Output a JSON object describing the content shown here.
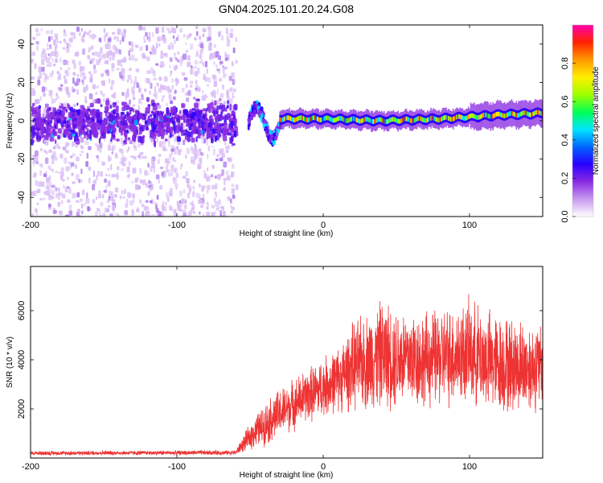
{
  "title": "GN04.2025.101.20.24.G08",
  "chart_data": [
    {
      "type": "heatmap",
      "name": "spectrogram",
      "xlabel": "Height of straight line (km)",
      "ylabel": "Frequency (Hz)",
      "xlim": [
        -200,
        150
      ],
      "ylim": [
        -50,
        50
      ],
      "xticks": [
        -200,
        -100,
        0,
        100
      ],
      "yticks": [
        -40,
        -20,
        0,
        20,
        40
      ],
      "colorbar": {
        "label": "Normalized spectral amplitude",
        "range": [
          0,
          1
        ],
        "ticks": [
          "0.0",
          "0.2",
          "0.4",
          "0.6",
          "0.8"
        ],
        "colors": [
          "#ffffff",
          "#c89af0",
          "#8a2be2",
          "#2a00ff",
          "#0066ff",
          "#00e5ff",
          "#00ff55",
          "#a0ff00",
          "#ffee00",
          "#ff9900",
          "#ff2200",
          "#ff00aa"
        ]
      },
      "features": {
        "noise_region_x": [
          -200,
          -60
        ],
        "tracking_start_x": -30,
        "line_center_hz": [
          {
            "x": -30,
            "y": 1
          },
          {
            "x": 0,
            "y": 1
          },
          {
            "x": 40,
            "y": 0
          },
          {
            "x": 80,
            "y": 1
          },
          {
            "x": 120,
            "y": 3
          },
          {
            "x": 150,
            "y": 4
          }
        ]
      }
    },
    {
      "type": "line",
      "name": "snr",
      "xlabel": "Height of straight line (km)",
      "ylabel": "SNR (10 * v/v)",
      "xlim": [
        -200,
        150
      ],
      "ylim": [
        0,
        7800
      ],
      "xticks": [
        -200,
        -100,
        0,
        100
      ],
      "yticks": [
        2000,
        4000,
        6000
      ],
      "color": "#ee3333",
      "envelope": [
        {
          "x": -200,
          "mean": 200,
          "amp": 100
        },
        {
          "x": -60,
          "mean": 220,
          "amp": 110
        },
        {
          "x": -48,
          "mean": 1000,
          "amp": 700
        },
        {
          "x": -35,
          "mean": 1600,
          "amp": 1100
        },
        {
          "x": -15,
          "mean": 2400,
          "amp": 1200
        },
        {
          "x": 10,
          "mean": 3200,
          "amp": 1500
        },
        {
          "x": 20,
          "mean": 3700,
          "amp": 2000
        },
        {
          "x": 40,
          "mean": 4200,
          "amp": 2500
        },
        {
          "x": 70,
          "mean": 4000,
          "amp": 2200
        },
        {
          "x": 100,
          "mean": 4300,
          "amp": 2400
        },
        {
          "x": 120,
          "mean": 3800,
          "amp": 2300
        },
        {
          "x": 150,
          "mean": 3700,
          "amp": 2000
        }
      ]
    }
  ]
}
